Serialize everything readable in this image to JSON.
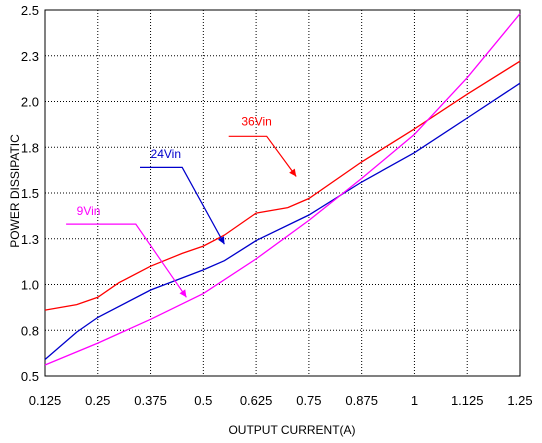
{
  "chart_data": {
    "type": "line",
    "xlabel": "OUTPUT CURRENT(A)",
    "ylabel": "POWER DISSIPATIC",
    "xlim": [
      0.125,
      1.25
    ],
    "ylim": [
      0.5,
      2.5
    ],
    "x_ticks": [
      "0.125",
      "0.25",
      "0.375",
      "0.5",
      "0.625",
      "0.75",
      "0.875",
      "1",
      "1.125",
      "1.25"
    ],
    "y_ticks": [
      "0.5",
      "0.8",
      "1.0",
      "1.3",
      "1.5",
      "1.8",
      "2.0",
      "2.3",
      "2.5"
    ],
    "grid": true,
    "series": [
      {
        "name": "36Vin",
        "color": "#ff0000",
        "points": [
          [
            0.125,
            0.86
          ],
          [
            0.2,
            0.89
          ],
          [
            0.25,
            0.93
          ],
          [
            0.3,
            1.01
          ],
          [
            0.375,
            1.1
          ],
          [
            0.45,
            1.17
          ],
          [
            0.5,
            1.21
          ],
          [
            0.55,
            1.27
          ],
          [
            0.6,
            1.35
          ],
          [
            0.625,
            1.39
          ],
          [
            0.7,
            1.42
          ],
          [
            0.75,
            1.47
          ],
          [
            0.875,
            1.67
          ],
          [
            1.0,
            1.85
          ],
          [
            1.125,
            2.04
          ],
          [
            1.25,
            2.22
          ]
        ]
      },
      {
        "name": "24Vin",
        "color": "#0000cc",
        "points": [
          [
            0.125,
            0.59
          ],
          [
            0.2,
            0.74
          ],
          [
            0.25,
            0.82
          ],
          [
            0.375,
            0.97
          ],
          [
            0.5,
            1.08
          ],
          [
            0.55,
            1.13
          ],
          [
            0.625,
            1.24
          ],
          [
            0.75,
            1.38
          ],
          [
            0.875,
            1.56
          ],
          [
            1.0,
            1.72
          ],
          [
            1.125,
            1.91
          ],
          [
            1.25,
            2.1
          ]
        ]
      },
      {
        "name": "9Vin",
        "color": "#ff00ff",
        "points": [
          [
            0.125,
            0.56
          ],
          [
            0.25,
            0.68
          ],
          [
            0.375,
            0.81
          ],
          [
            0.5,
            0.95
          ],
          [
            0.625,
            1.14
          ],
          [
            0.75,
            1.35
          ],
          [
            0.875,
            1.58
          ],
          [
            1.0,
            1.82
          ],
          [
            1.125,
            2.13
          ],
          [
            1.2,
            2.34
          ],
          [
            1.25,
            2.48
          ]
        ]
      }
    ],
    "annotations": [
      {
        "label": "36Vin",
        "color": "#ff0000",
        "text_at": [
          0.59,
          1.87
        ],
        "line": [
          [
            0.56,
            1.81
          ],
          [
            0.65,
            1.81
          ],
          [
            0.72,
            1.59
          ]
        ]
      },
      {
        "label": "24Vin",
        "color": "#0000cc",
        "text_at": [
          0.375,
          1.69
        ],
        "line": [
          [
            0.35,
            1.64
          ],
          [
            0.45,
            1.64
          ],
          [
            0.55,
            1.22
          ]
        ]
      },
      {
        "label": "9Vin",
        "color": "#ff00ff",
        "text_at": [
          0.2,
          1.38
        ],
        "line": [
          [
            0.175,
            1.33
          ],
          [
            0.34,
            1.33
          ],
          [
            0.46,
            0.93
          ]
        ]
      }
    ]
  }
}
